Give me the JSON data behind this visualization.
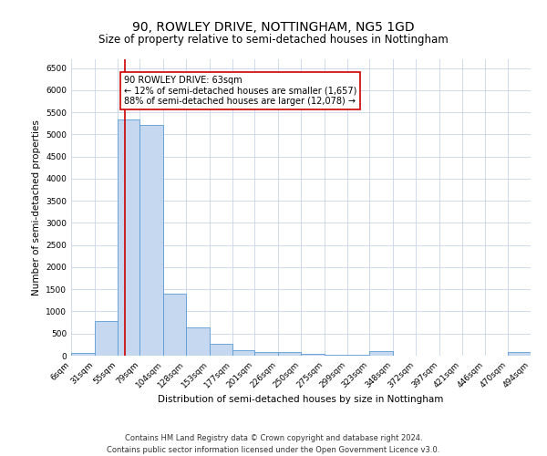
{
  "title": "90, ROWLEY DRIVE, NOTTINGHAM, NG5 1GD",
  "subtitle": "Size of property relative to semi-detached houses in Nottingham",
  "xlabel": "Distribution of semi-detached houses by size in Nottingham",
  "ylabel": "Number of semi-detached properties",
  "bar_color": "#c5d8f0",
  "bar_edge_color": "#5b9bd5",
  "background_color": "#ffffff",
  "grid_color": "#c8d4e8",
  "property_line_x": 63,
  "property_line_color": "#cc0000",
  "annotation_text": "90 ROWLEY DRIVE: 63sqm\n← 12% of semi-detached houses are smaller (1,657)\n88% of semi-detached houses are larger (12,078) →",
  "annotation_box_color": "#ffffff",
  "annotation_box_edge_color": "#cc0000",
  "bin_edges": [
    6,
    31,
    55,
    79,
    104,
    128,
    153,
    177,
    201,
    226,
    250,
    275,
    299,
    323,
    348,
    372,
    397,
    421,
    446,
    470,
    494
  ],
  "bin_heights": [
    60,
    780,
    5330,
    5210,
    1400,
    630,
    260,
    130,
    90,
    80,
    50,
    30,
    20,
    110,
    10,
    10,
    10,
    10,
    10,
    80
  ],
  "ylim": [
    0,
    6700
  ],
  "yticks": [
    0,
    500,
    1000,
    1500,
    2000,
    2500,
    3000,
    3500,
    4000,
    4500,
    5000,
    5500,
    6000,
    6500
  ],
  "footer_text": "Contains HM Land Registry data © Crown copyright and database right 2024.\nContains public sector information licensed under the Open Government Licence v3.0.",
  "title_fontsize": 10,
  "subtitle_fontsize": 8.5,
  "axis_label_fontsize": 7.5,
  "tick_fontsize": 6.5,
  "footer_fontsize": 6,
  "annotation_fontsize": 7
}
